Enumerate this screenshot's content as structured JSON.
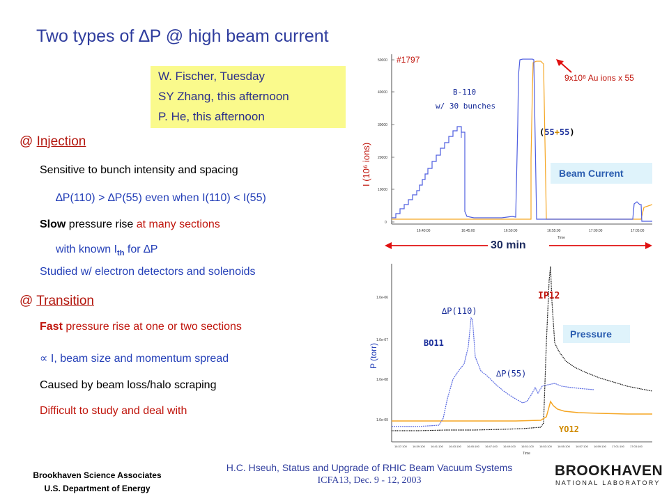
{
  "slide": {
    "title": "Two types of ∆P @ high beam current",
    "authors": [
      "W. Fischer, Tuesday",
      "SY Zhang, this afternoon",
      "P. He, this afternoon"
    ]
  },
  "injection": {
    "heading_prefix": "@ ",
    "heading": "Injection",
    "line1": "Sensitive to bunch intensity and spacing",
    "line2_a": "∆P(110) > ",
    "line2_b": "∆P(55) even when ",
    "line2_c": "I(110) < I(55)",
    "line3_a": "Slow",
    "line3_b": " pressure rise ",
    "line3_c": "at many sections",
    "line4_a": "with known  I",
    "line4_sub": "th",
    "line4_b": " for ∆P",
    "line5_a": "Studied",
    "line5_b": " w/ electron detectors and solenoids"
  },
  "transition": {
    "heading_prefix": "@ ",
    "heading": "Transition",
    "line1_a": "Fast",
    "line1_b": " pressure rise ",
    "line1_c": "at one or two sections",
    "line2_a": "∝ ",
    "line2_b": "I, beam size and momentum spread",
    "line3": "Caused by beam loss/halo scraping",
    "line4": "Difficult to study and deal with"
  },
  "plot_top": {
    "run": "#1797",
    "ylabel": "I (10⁶ ions)",
    "blue_label_1": "B-110",
    "blue_label_2": "w/ 30 bunches",
    "orange_label_open": "(",
    "orange_label_a": "55",
    "orange_label_plus": "+",
    "orange_label_b": "55",
    "orange_label_close": ")",
    "annotation": "9x10⁸ Au ions x 55",
    "legend": "Beam Current",
    "xaxis": "Time",
    "yticks": [
      "50000",
      "40000",
      "30000",
      "20000",
      "10000",
      "0"
    ],
    "xticks": [
      "16:40:00",
      "16:45:00",
      "16:50:00",
      "16:55:00",
      "17:00:00",
      "17:05:00"
    ]
  },
  "span_label": "30 min",
  "plot_bottom": {
    "ylabel": "P (torr)",
    "label_ip12": "IP12",
    "label_dp110": "∆P(110)",
    "label_bo11": "BO11",
    "label_dp55": "∆P(55)",
    "label_yo12": "YO12",
    "legend": "Pressure",
    "xaxis": "Time",
    "yticks": [
      "1.0e-06",
      "1.0e-07",
      "1.0e-08",
      "1.0e-09"
    ],
    "xticks": [
      "16:37:100",
      "16:39:100",
      "16:41:100",
      "16:43:100",
      "16:45:100",
      "16:47:100",
      "16:49:100",
      "16:51:100",
      "16:53:100",
      "16:55:100",
      "16:57:100",
      "16:59:100",
      "17:01:100",
      "17:03:100"
    ]
  },
  "footer": {
    "left_1": "Brookhaven Science Associates",
    "left_2": "U.S. Department of Energy",
    "mid_1": "H.C. Hseuh, Status and Upgrade of RHIC Beam Vacuum Systems",
    "mid_2": "ICFA13, Dec. 9 - 12, 2003",
    "logo_1": "BROOKHAVEN",
    "logo_2": "NATIONAL LABORATORY"
  },
  "colors": {
    "title": "#2f3d9e",
    "heading": "#b3160d",
    "blue": "#5566e0",
    "orange": "#f5a623",
    "legend_box": "#dff3fb",
    "author_box": "#fafa8c"
  }
}
